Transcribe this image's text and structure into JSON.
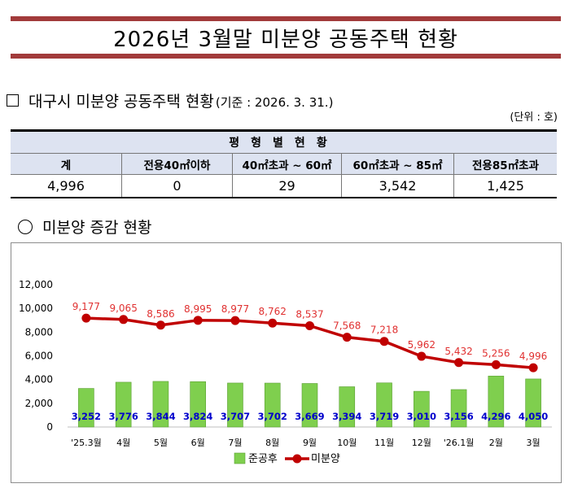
{
  "title": "2026년 3월말 미분양 공동주택 현황",
  "section1": {
    "heading": "대구시 미분양 공동주택 현황",
    "subheading": "(기준 : 2026. 3. 31.)",
    "unit": "(단위 : 호)"
  },
  "table": {
    "group_header": "평형별현황",
    "headers": [
      "계",
      "전용40㎡이하",
      "40㎡초과 ~ 60㎡",
      "60㎡초과 ~ 85㎡",
      "전용85㎡초과"
    ],
    "values": [
      "4,996",
      "0",
      "29",
      "3,542",
      "1,425"
    ]
  },
  "section2": {
    "heading": "미분양 증감 현황"
  },
  "chart_data": {
    "type": "bar+line",
    "categories": [
      "'25.3월",
      "4월",
      "5월",
      "6월",
      "7월",
      "8월",
      "9월",
      "10월",
      "11월",
      "12월",
      "'26.1월",
      "2월",
      "3월"
    ],
    "series": [
      {
        "name": "준공후",
        "type": "bar",
        "color": "#7fcf4e",
        "values": [
          3252,
          3776,
          3844,
          3824,
          3707,
          3702,
          3669,
          3394,
          3719,
          3010,
          3156,
          4296,
          4050
        ]
      },
      {
        "name": "미분양",
        "type": "line",
        "color": "#c00000",
        "values": [
          9177,
          9065,
          8586,
          8995,
          8977,
          8762,
          8537,
          7568,
          7218,
          5962,
          5432,
          5256,
          4996
        ]
      }
    ],
    "ylim": [
      0,
      12000
    ],
    "yticks": [
      "0",
      "2,000",
      "4,000",
      "6,000",
      "8,000",
      "10,000",
      "12,000"
    ],
    "grid": false,
    "legend": "bottom",
    "bar_label_color": "#0000cc",
    "line_label_color": "#e03030"
  }
}
